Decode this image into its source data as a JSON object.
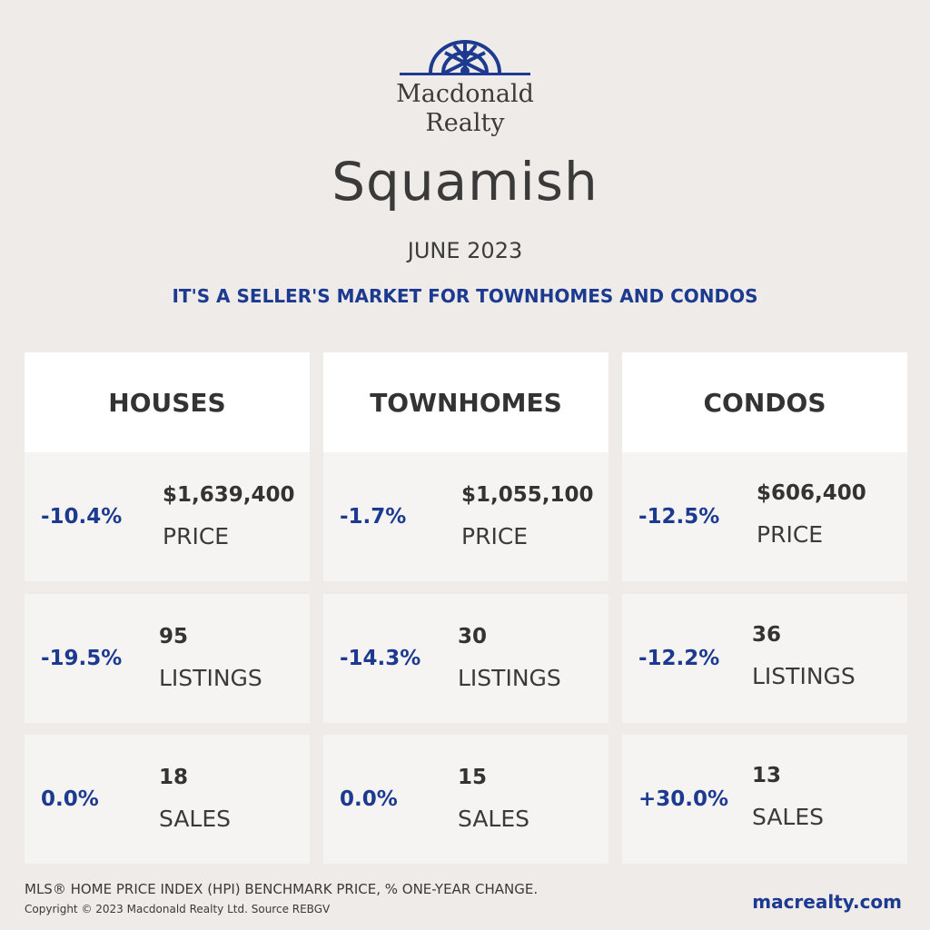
{
  "brand": {
    "line1": "Macdonald",
    "line2": "Realty",
    "color": "#1c3a8f"
  },
  "city": "Squamish",
  "period": "JUNE 2023",
  "headline": "IT'S A SELLER'S MARKET FOR TOWNHOMES AND CONDOS",
  "columns": [
    {
      "title": "HOUSES",
      "price": {
        "change": "-10.4%",
        "value": "$1,639,400",
        "label": "PRICE"
      },
      "listings": {
        "change": "-19.5%",
        "value": "95",
        "label": "LISTINGS"
      },
      "sales": {
        "change": "0.0%",
        "value": "18",
        "label": "SALES"
      }
    },
    {
      "title": "TOWNHOMES",
      "price": {
        "change": "-1.7%",
        "value": "$1,055,100",
        "label": "PRICE"
      },
      "listings": {
        "change": "-14.3%",
        "value": "30",
        "label": "LISTINGS"
      },
      "sales": {
        "change": "0.0%",
        "value": "15",
        "label": "SALES"
      }
    },
    {
      "title": "CONDOS",
      "price": {
        "change": "-12.5%",
        "value": "$606,400",
        "label": "PRICE"
      },
      "listings": {
        "change": "-12.2%",
        "value": "36",
        "label": "LISTINGS"
      },
      "sales": {
        "change": "+30.0%",
        "value": "13",
        "label": "SALES"
      }
    }
  ],
  "footer": {
    "note": "MLS® HOME PRICE INDEX (HPI) BENCHMARK PRICE, % ONE-YEAR CHANGE.",
    "copyright": "Copyright © 2023 Macdonald Realty Ltd. Source REBGV",
    "website": "macrealty.com"
  },
  "colors": {
    "background": "#efebe9",
    "accent": "#1c3a8f",
    "card": "#f6f4f3",
    "header_card": "#ffffff"
  },
  "icons": {
    "logo": "compass-rose-arch-icon"
  }
}
